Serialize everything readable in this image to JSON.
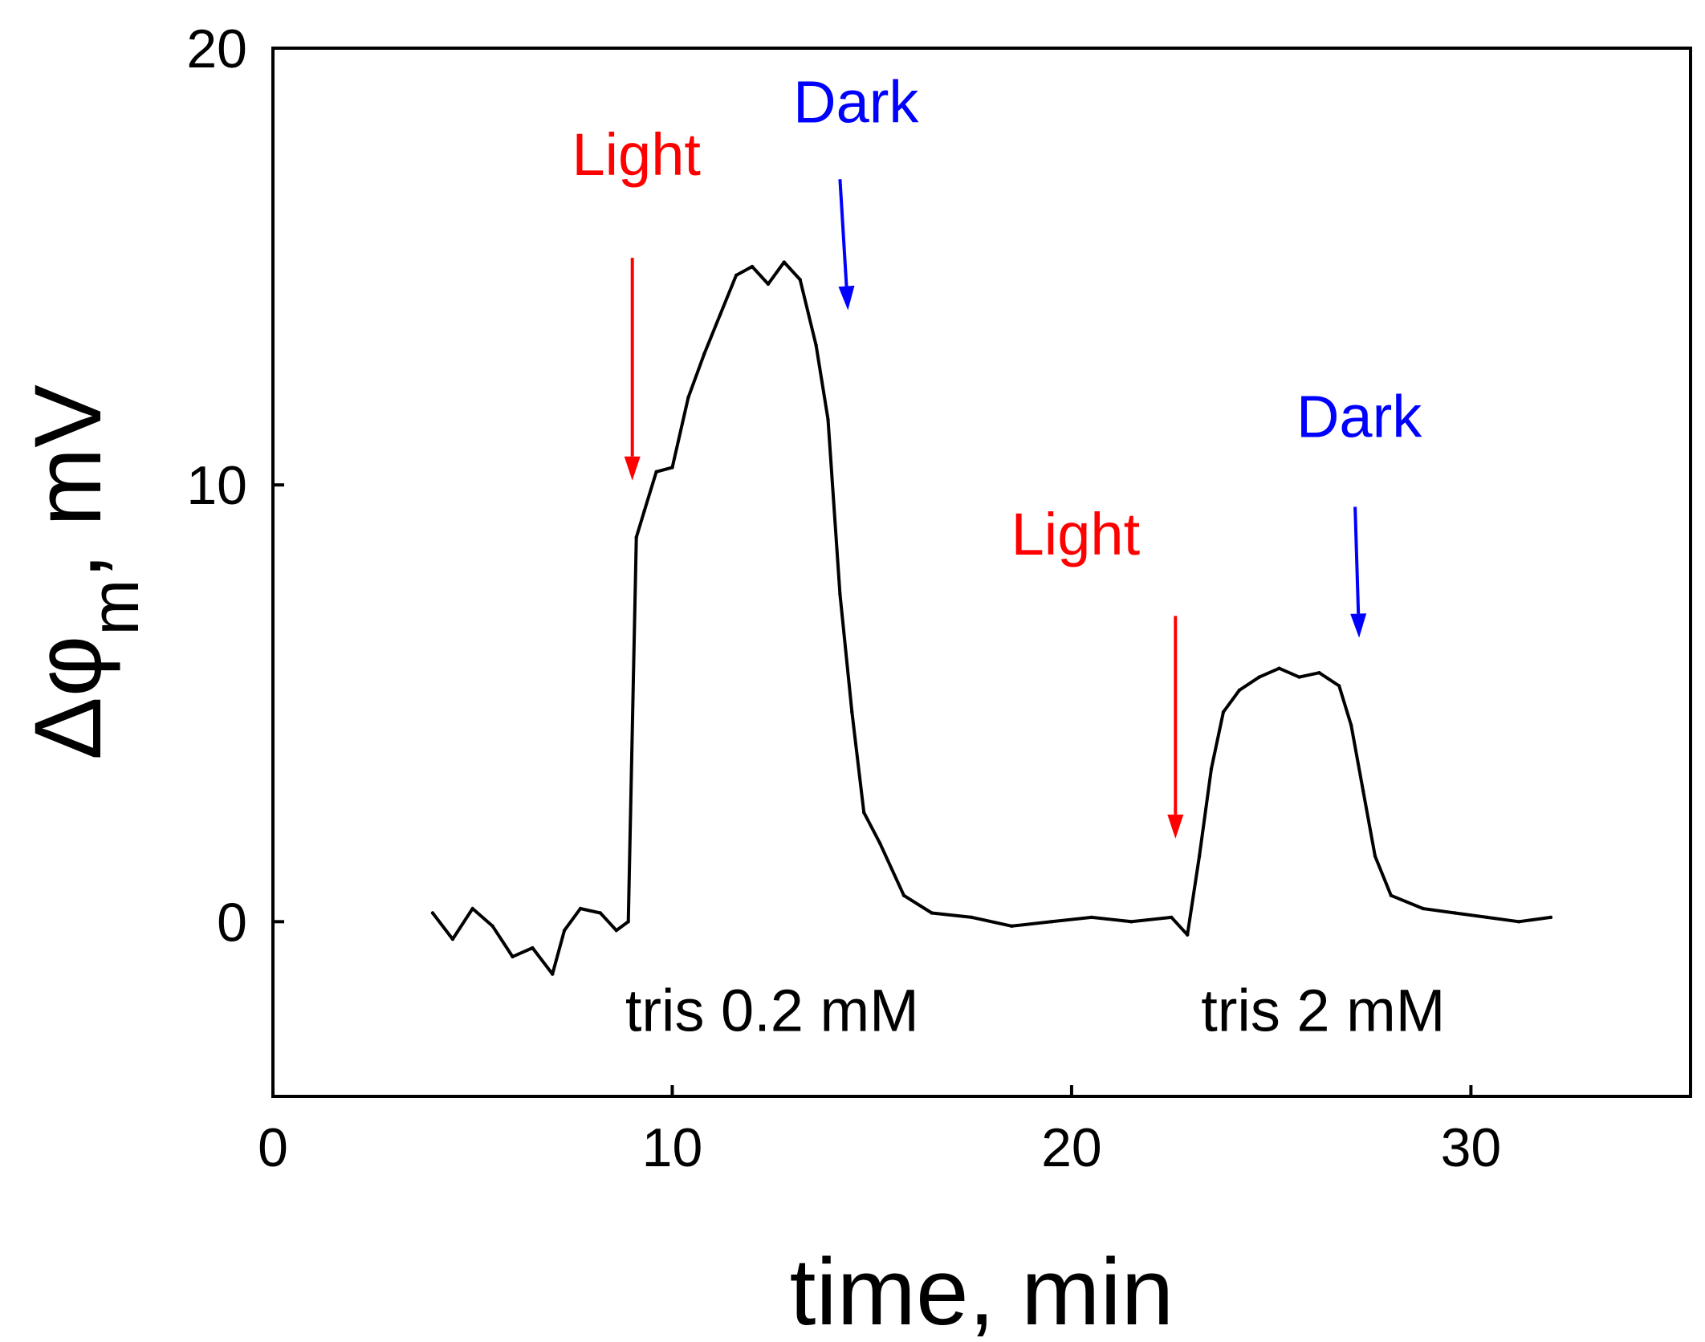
{
  "chart_data": {
    "type": "line",
    "title": "",
    "xlabel": "time, min",
    "ylabel_main": "Δφ",
    "ylabel_subscript": "m",
    "ylabel_tail": ", mV",
    "xlim": [
      0,
      35.5
    ],
    "ylim": [
      -4,
      20
    ],
    "xticks": [
      0,
      10,
      20,
      30
    ],
    "xtick_labels": [
      "0",
      "10",
      "20",
      "30"
    ],
    "yticks": [
      0,
      10,
      20
    ],
    "ytick_labels": [
      "0",
      "10",
      "20"
    ],
    "grid": false,
    "legend": "none",
    "colors": {
      "line": "#000000",
      "light": "#ff0000",
      "dark": "#0000ff",
      "axis": "#000000"
    },
    "series": [
      {
        "name": "Δφm",
        "x": [
          4.0,
          4.5,
          5.0,
          5.5,
          6.0,
          6.5,
          7.0,
          7.3,
          7.7,
          8.2,
          8.6,
          8.9,
          9.1,
          9.3,
          9.6,
          10.0,
          10.4,
          10.8,
          11.2,
          11.6,
          12.0,
          12.4,
          12.8,
          13.2,
          13.6,
          13.9,
          14.2,
          14.5,
          14.8,
          15.2,
          15.8,
          16.5,
          17.5,
          18.5,
          19.5,
          20.5,
          21.5,
          22.5,
          22.9,
          23.2,
          23.5,
          23.8,
          24.2,
          24.7,
          25.2,
          25.7,
          26.2,
          26.7,
          27.0,
          27.3,
          27.6,
          28.0,
          28.8,
          29.6,
          30.4,
          31.2,
          32.0
        ],
        "y": [
          0.2,
          -0.4,
          0.3,
          -0.1,
          -0.8,
          -0.6,
          -1.2,
          -0.2,
          0.3,
          0.2,
          -0.2,
          0.0,
          8.8,
          9.4,
          10.3,
          10.4,
          12.0,
          13.0,
          13.9,
          14.8,
          15.0,
          14.6,
          15.1,
          14.7,
          13.2,
          11.5,
          7.5,
          4.8,
          2.5,
          1.8,
          0.6,
          0.2,
          0.1,
          -0.1,
          0.0,
          0.1,
          0.0,
          0.1,
          -0.3,
          1.5,
          3.5,
          4.8,
          5.3,
          5.6,
          5.8,
          5.6,
          5.7,
          5.4,
          4.5,
          3.0,
          1.5,
          0.6,
          0.3,
          0.2,
          0.1,
          0.0,
          0.1
        ]
      }
    ],
    "annotations": [
      {
        "id": "light-1",
        "text": "Light",
        "x": 9.1,
        "y": 17.1,
        "color": "#ff0000",
        "arrow_from": [
          9.0,
          15.2
        ],
        "arrow_to": [
          9.0,
          10.1
        ]
      },
      {
        "id": "dark-1",
        "text": "Dark",
        "x": 14.6,
        "y": 18.3,
        "color": "#0000ff",
        "arrow_from": [
          14.2,
          17.0
        ],
        "arrow_to": [
          14.4,
          14.0
        ]
      },
      {
        "id": "light-2",
        "text": "Light",
        "x": 20.1,
        "y": 8.4,
        "color": "#ff0000",
        "arrow_from": [
          22.6,
          7.0
        ],
        "arrow_to": [
          22.6,
          1.9
        ]
      },
      {
        "id": "dark-2",
        "text": "Dark",
        "x": 27.2,
        "y": 11.1,
        "color": "#0000ff",
        "arrow_from": [
          27.1,
          9.5
        ],
        "arrow_to": [
          27.2,
          6.5
        ]
      },
      {
        "id": "tris-1",
        "text": "tris 0.2 mM",
        "x": 12.5,
        "y": -2.5,
        "color": "#000000"
      },
      {
        "id": "tris-2",
        "text": "tris 2 mM",
        "x": 26.3,
        "y": -2.5,
        "color": "#000000"
      }
    ]
  }
}
